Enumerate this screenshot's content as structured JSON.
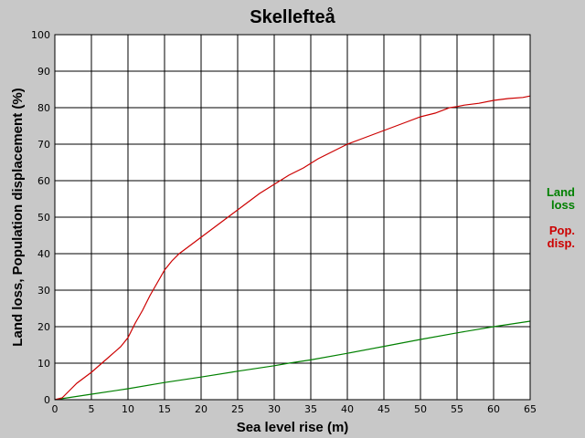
{
  "chart_data": {
    "type": "line",
    "title": "Skellefteå",
    "xlabel": "Sea level rise (m)",
    "ylabel": "Land loss, Population displacement (%)",
    "xlim": [
      0,
      65
    ],
    "ylim": [
      0,
      100
    ],
    "xticks": [
      0,
      5,
      10,
      15,
      20,
      25,
      30,
      35,
      40,
      45,
      50,
      55,
      60,
      65
    ],
    "yticks": [
      0,
      10,
      20,
      30,
      40,
      50,
      60,
      70,
      80,
      90,
      100
    ],
    "grid": true,
    "legend_position": "right",
    "series": [
      {
        "name": "Land loss",
        "legend_lines": [
          "Land",
          "loss"
        ],
        "color": "#008000",
        "x": [
          0,
          2,
          5,
          10,
          15,
          20,
          25,
          30,
          32,
          35,
          40,
          45,
          50,
          55,
          60,
          65
        ],
        "y": [
          0,
          0.6,
          1.5,
          3.0,
          4.7,
          6.2,
          7.8,
          9.3,
          10.0,
          10.9,
          12.7,
          14.6,
          16.5,
          18.3,
          20.0,
          21.5
        ]
      },
      {
        "name": "Pop. disp.",
        "legend_lines": [
          "Pop.",
          "disp."
        ],
        "color": "#cc0000",
        "x": [
          0,
          1,
          2,
          3,
          5,
          7,
          9,
          10,
          11,
          12,
          13,
          14,
          15,
          16,
          17,
          18,
          20,
          22,
          24,
          26,
          28,
          30,
          32,
          34,
          36,
          38,
          40,
          42,
          44,
          46,
          48,
          50,
          52,
          54,
          55,
          56,
          58,
          60,
          62,
          64,
          65
        ],
        "y": [
          0,
          0.5,
          2.5,
          4.5,
          7.5,
          11.0,
          14.5,
          17.0,
          21.0,
          24.5,
          28.5,
          32.0,
          35.5,
          38.0,
          40.0,
          41.5,
          44.5,
          47.5,
          50.5,
          53.5,
          56.5,
          59.0,
          61.5,
          63.5,
          66.0,
          68.0,
          70.0,
          71.5,
          73.0,
          74.5,
          76.0,
          77.5,
          78.5,
          80.0,
          80.3,
          80.7,
          81.2,
          82.0,
          82.5,
          82.8,
          83.2
        ]
      }
    ]
  }
}
